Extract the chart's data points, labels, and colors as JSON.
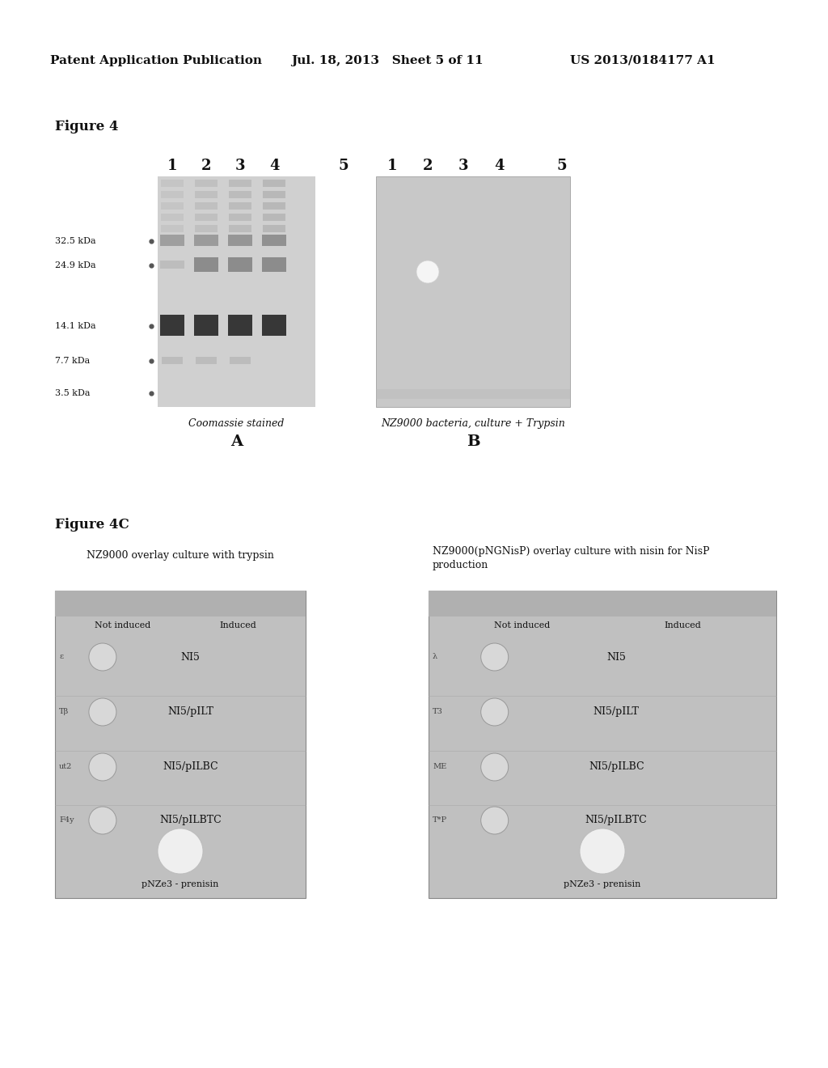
{
  "header_left": "Patent Application Publication",
  "header_mid": "Jul. 18, 2013   Sheet 5 of 11",
  "header_right": "US 2013/0184177 A1",
  "fig4_label": "Figure 4",
  "fig4c_label": "Figure 4C",
  "mw_markers": [
    "32.5 kDa",
    "24.9 kDa",
    "14.1 kDa",
    "7.7 kDa",
    "3.5 kDa"
  ],
  "gel_a_caption": "Coomassie stained",
  "gel_a_label": "A",
  "gel_b_caption": "NZ9000 bacteria, culture + Trypsin",
  "gel_b_label": "B",
  "panel_left_title": "NZ9000 overlay culture with trypsin",
  "panel_right_title_l1": "NZ9000(pNGNisP) overlay culture with nisin for NisP",
  "panel_right_title_l2": "production",
  "row_labels": [
    "NI5",
    "NI5/pILT",
    "NI5/pILBC",
    "NI5/pILBTC"
  ],
  "not_induced": "Not induced",
  "induced": "Induced",
  "bottom_label": "pNZe3 - prenisin",
  "bg_color": "#ffffff"
}
